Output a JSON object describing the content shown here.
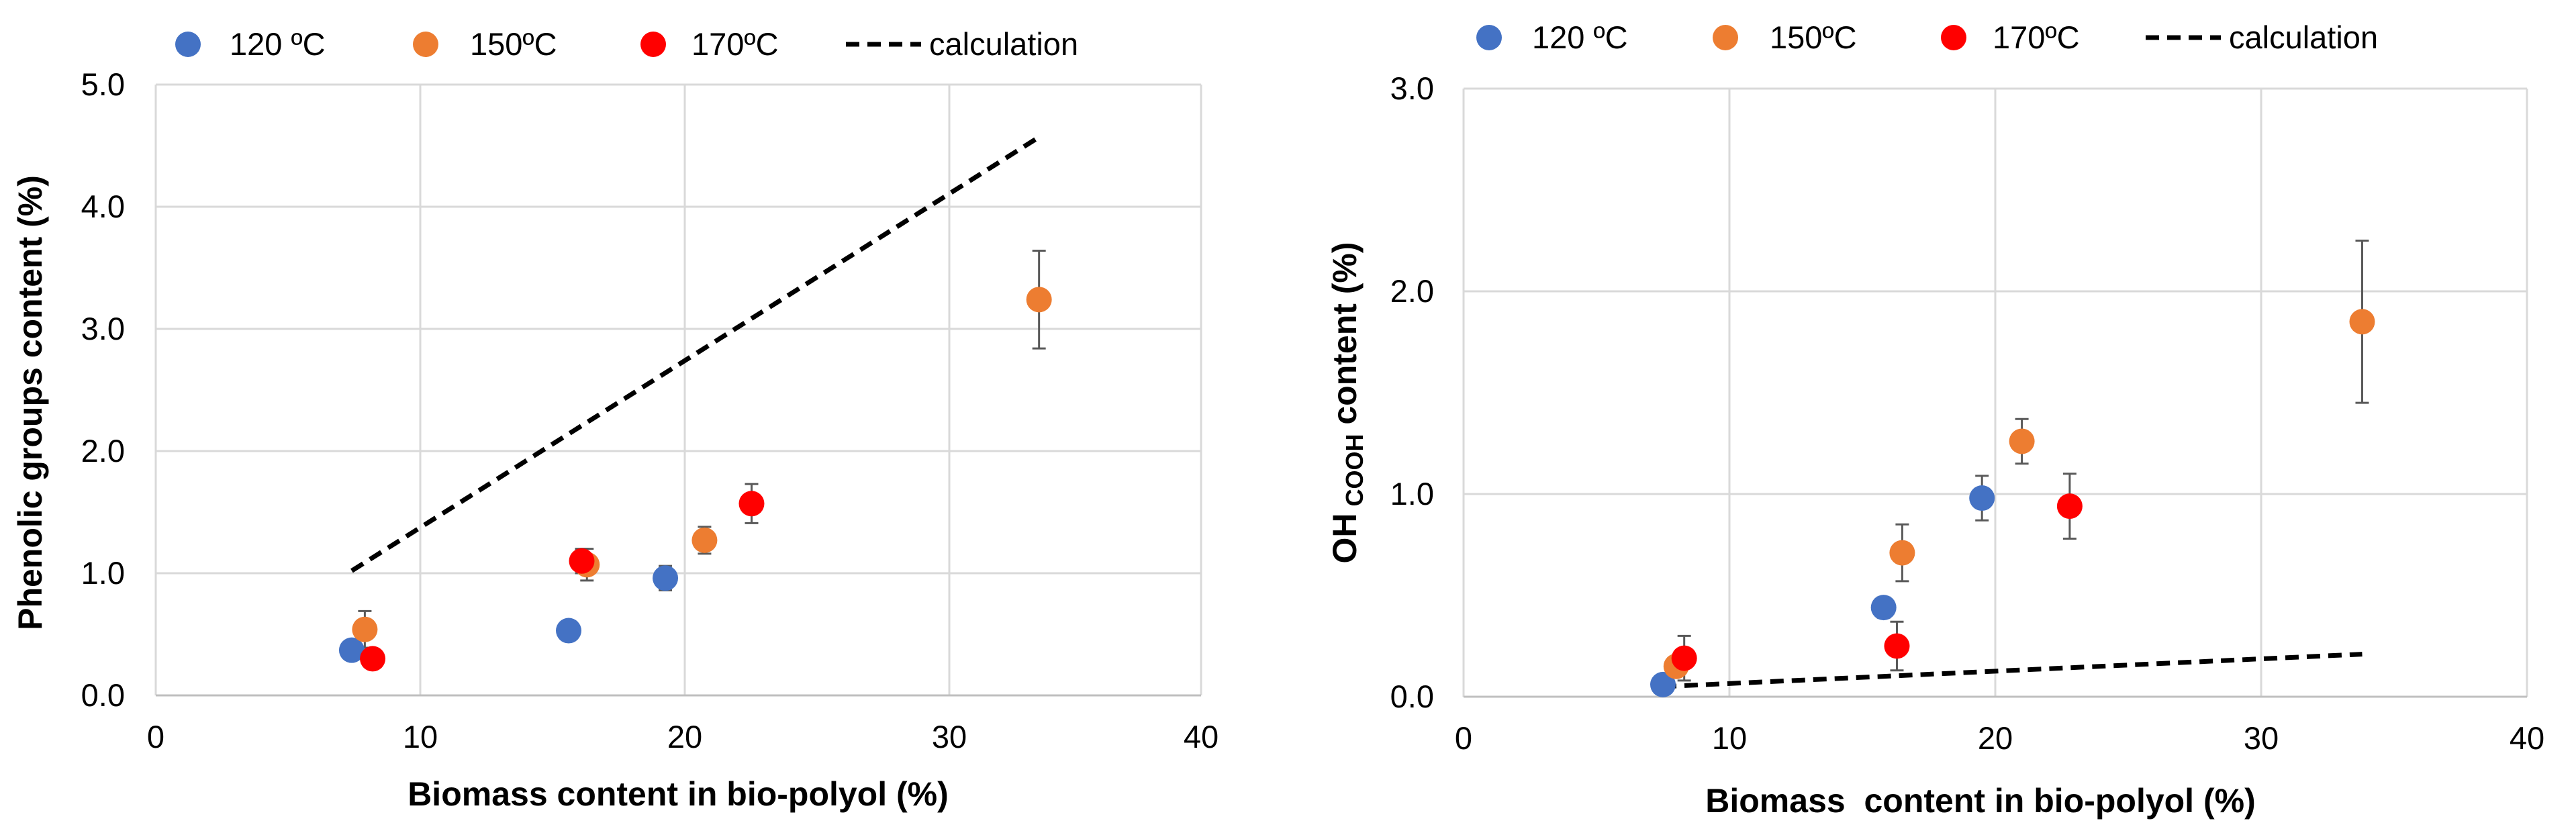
{
  "chart_data": [
    {
      "type": "scatter",
      "xlabel": "Biomass content in bio-polyol (%)",
      "ylabel": "Phenolic groups content (%)",
      "xlim": [
        0,
        40
      ],
      "ylim": [
        0,
        5
      ],
      "x_ticks": [
        "0",
        "10",
        "20",
        "30",
        "40"
      ],
      "y_ticks": [
        "0.0",
        "1.0",
        "2.0",
        "3.0",
        "4.0",
        "5.0"
      ],
      "grid": true,
      "legend_position": "top",
      "series": [
        {
          "name": "120 ºC",
          "color": "#4472C4",
          "points": [
            {
              "x": 7.5,
              "y": 0.37,
              "err": 0
            },
            {
              "x": 15.8,
              "y": 0.53,
              "err": 0
            },
            {
              "x": 19.5,
              "y": 0.96,
              "err": 0.1
            }
          ]
        },
        {
          "name": "150ºC",
          "color": "#ED7D31",
          "points": [
            {
              "x": 8.0,
              "y": 0.54,
              "err": 0.15
            },
            {
              "x": 16.5,
              "y": 1.07,
              "err": 0.13
            },
            {
              "x": 21.0,
              "y": 1.27,
              "err": 0.11
            },
            {
              "x": 33.8,
              "y": 3.24,
              "err": 0.4
            }
          ]
        },
        {
          "name": "170ºC",
          "color": "#FF0000",
          "points": [
            {
              "x": 8.3,
              "y": 0.3,
              "err": 0
            },
            {
              "x": 16.3,
              "y": 1.1,
              "err": 0.1
            },
            {
              "x": 22.8,
              "y": 1.57,
              "err": 0.16
            }
          ]
        }
      ],
      "calculation": {
        "name": "calculation",
        "x": [
          7.5,
          33.8
        ],
        "y": [
          1.02,
          4.57
        ]
      }
    },
    {
      "type": "scatter",
      "xlabel": "Biomass  content in bio-polyol (%)",
      "ylabel_main": "OH",
      "ylabel_sub": "COOH",
      "ylabel_rest": " content (%)",
      "xlim": [
        0,
        40
      ],
      "ylim": [
        0,
        3
      ],
      "x_ticks": [
        "0",
        "10",
        "20",
        "30",
        "40"
      ],
      "y_ticks": [
        "0.0",
        "1.0",
        "2.0",
        "3.0"
      ],
      "grid": true,
      "legend_position": "top",
      "series": [
        {
          "name": "120 ºC",
          "color": "#4472C4",
          "points": [
            {
              "x": 7.5,
              "y": 0.06,
              "err": 0
            },
            {
              "x": 15.8,
              "y": 0.44,
              "err": 0.05
            },
            {
              "x": 19.5,
              "y": 0.98,
              "err": 0.11
            }
          ]
        },
        {
          "name": "150ºC",
          "color": "#ED7D31",
          "points": [
            {
              "x": 8.0,
              "y": 0.15,
              "err": 0
            },
            {
              "x": 16.5,
              "y": 0.71,
              "err": 0.14
            },
            {
              "x": 21.0,
              "y": 1.26,
              "err": 0.11
            },
            {
              "x": 33.8,
              "y": 1.85,
              "err": 0.4
            }
          ]
        },
        {
          "name": "170ºC",
          "color": "#FF0000",
          "points": [
            {
              "x": 8.3,
              "y": 0.19,
              "err": 0.11
            },
            {
              "x": 16.3,
              "y": 0.25,
              "err": 0.12
            },
            {
              "x": 22.8,
              "y": 0.94,
              "err": 0.16
            }
          ]
        }
      ],
      "calculation": {
        "name": "calculation",
        "x": [
          7.5,
          33.8
        ],
        "y": [
          0.05,
          0.21
        ]
      }
    }
  ]
}
